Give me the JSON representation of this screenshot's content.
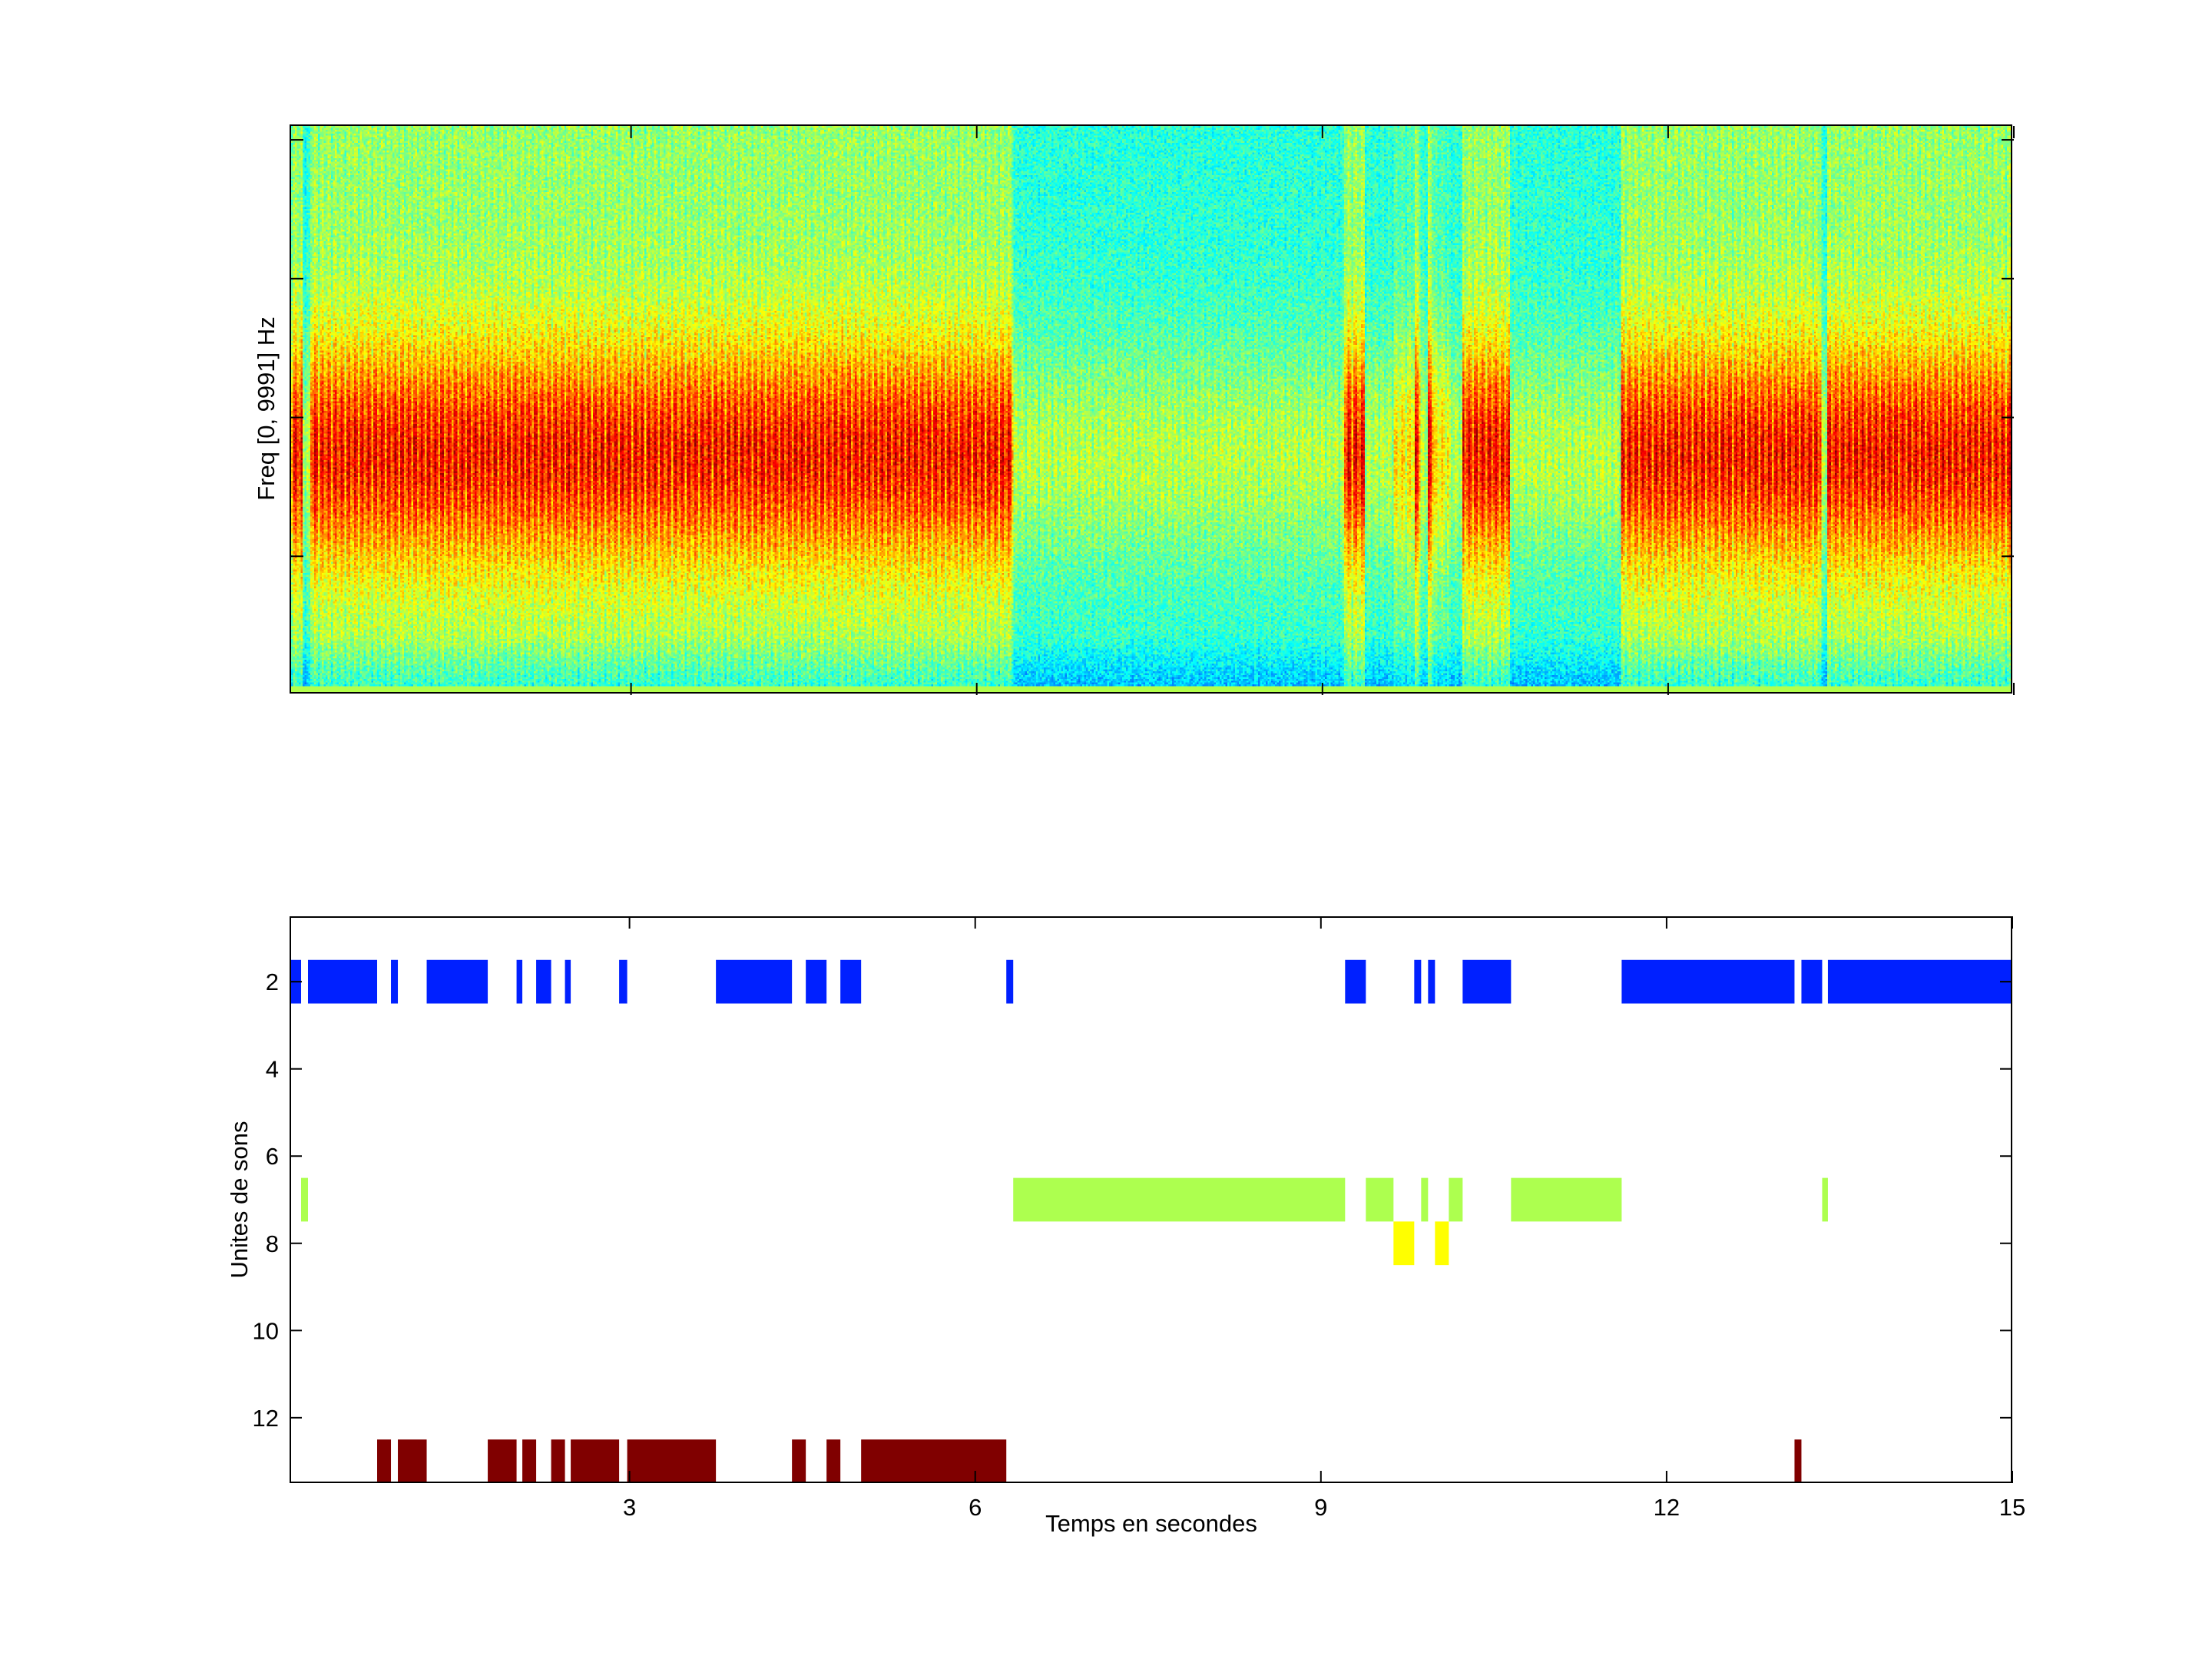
{
  "chart_data": [
    {
      "type": "heatmap",
      "title": "",
      "xlabel": "",
      "ylabel": "Freq [0, 9991] Hz",
      "xlim": [
        0.05,
        15
      ],
      "ylim": [
        0,
        9991
      ],
      "colormap": "jet",
      "description_ticks": {
        "x_ticks": [
          3,
          6,
          9,
          12,
          15
        ],
        "y_tick_count": 4
      },
      "grid": false
    },
    {
      "type": "bar",
      "subtype": "broken-barh timeline",
      "title": "",
      "xlabel": "Temps en secondes",
      "ylabel": "Unites de sons",
      "xlim": [
        0.05,
        15
      ],
      "ylim": [
        0.5,
        13.5
      ],
      "y_reversed": true,
      "x_ticks": [
        3,
        6,
        9,
        12,
        15
      ],
      "y_ticks": [
        2,
        4,
        6,
        8,
        10,
        12
      ],
      "grid": false,
      "series": [
        {
          "name": "unit 2",
          "y": 2,
          "color": "#0020ff",
          "segments": [
            [
              0.05,
              0.15
            ],
            [
              0.21,
              0.81
            ],
            [
              0.93,
              0.99
            ],
            [
              1.24,
              1.77
            ],
            [
              2.02,
              2.07
            ],
            [
              2.19,
              2.32
            ],
            [
              2.44,
              2.49
            ],
            [
              2.91,
              2.98
            ],
            [
              3.75,
              4.41
            ],
            [
              4.53,
              4.71
            ],
            [
              4.83,
              5.01
            ],
            [
              6.27,
              6.33
            ],
            [
              9.21,
              9.39
            ],
            [
              9.81,
              9.87
            ],
            [
              9.93,
              9.99
            ],
            [
              10.23,
              10.65
            ],
            [
              11.61,
              13.11
            ],
            [
              13.17,
              13.35
            ],
            [
              13.4,
              15.0
            ]
          ]
        },
        {
          "name": "unit 7",
          "y": 7,
          "color": "#adff4f",
          "segments": [
            [
              0.15,
              0.21
            ],
            [
              6.33,
              9.21
            ],
            [
              9.39,
              9.63
            ],
            [
              9.87,
              9.93
            ],
            [
              10.11,
              10.23
            ],
            [
              10.65,
              11.61
            ],
            [
              13.35,
              13.4
            ]
          ]
        },
        {
          "name": "unit 8",
          "y": 8,
          "color": "#ffff00",
          "segments": [
            [
              9.63,
              9.81
            ],
            [
              9.99,
              10.11
            ]
          ]
        },
        {
          "name": "unit 13",
          "y": 13,
          "color": "#800000",
          "segments": [
            [
              0.81,
              0.93
            ],
            [
              0.99,
              1.24
            ],
            [
              1.77,
              2.02
            ],
            [
              2.07,
              2.19
            ],
            [
              2.32,
              2.44
            ],
            [
              2.49,
              2.91
            ],
            [
              2.98,
              3.75
            ],
            [
              4.41,
              4.53
            ],
            [
              4.71,
              4.83
            ],
            [
              5.01,
              6.27
            ],
            [
              13.11,
              13.17
            ]
          ]
        }
      ]
    }
  ]
}
